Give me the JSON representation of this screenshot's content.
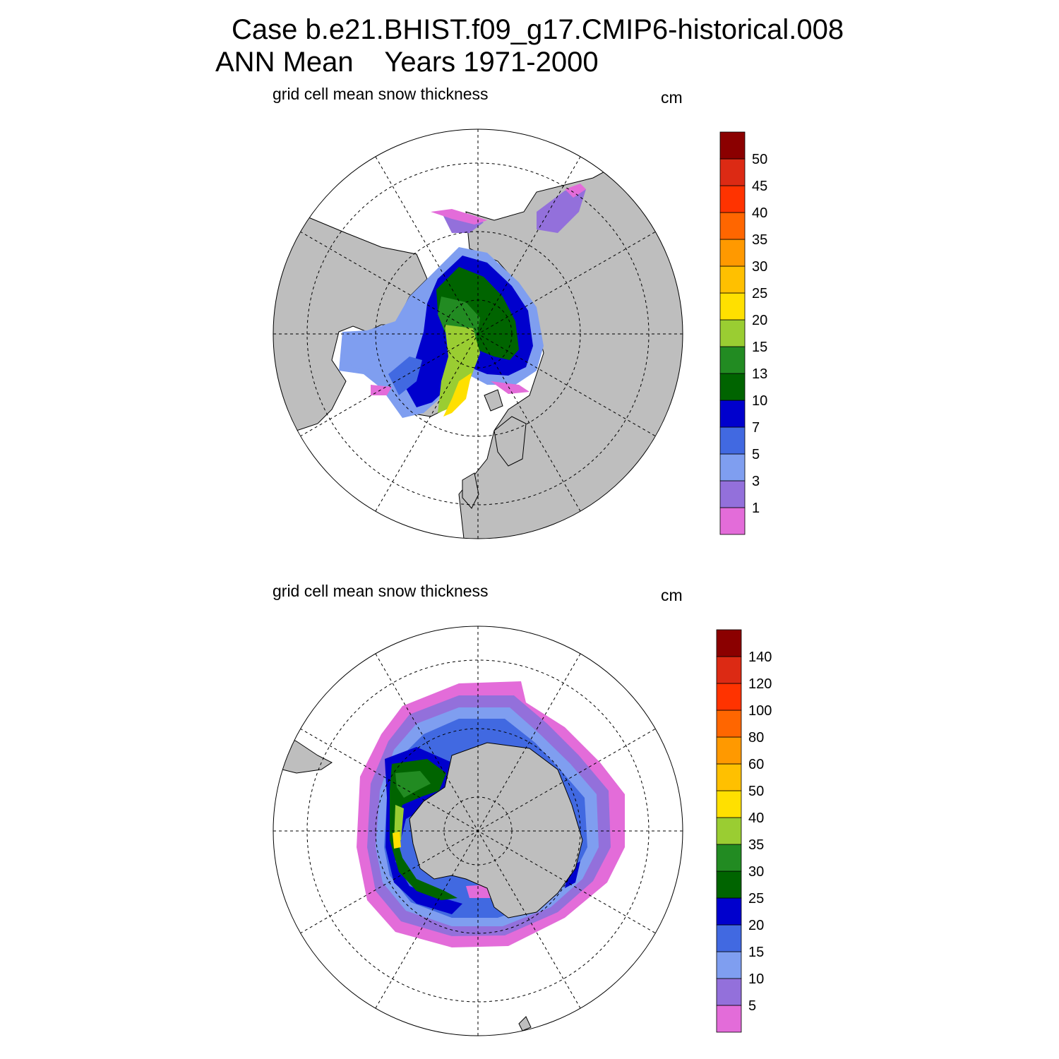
{
  "figure": {
    "title_line1": "Case b.e21.BHIST.f09_g17.CMIP6-historical.008",
    "title_line2": "ANN Mean    Years 1971-2000"
  },
  "panels": [
    {
      "hemisphere": "north",
      "variable_label": "grid cell mean snow thickness",
      "units": "cm",
      "colorbar_labels": [
        "50",
        "45",
        "40",
        "35",
        "30",
        "25",
        "20",
        "15",
        "13",
        "10",
        "7",
        "5",
        "3",
        "1"
      ]
    },
    {
      "hemisphere": "south",
      "variable_label": "grid cell mean snow thickness",
      "units": "cm",
      "colorbar_labels": [
        "140",
        "120",
        "100",
        "80",
        "60",
        "50",
        "40",
        "35",
        "30",
        "25",
        "20",
        "15",
        "10",
        "5"
      ]
    }
  ],
  "colors": {
    "land": "#bebebe",
    "ocean": "#ffffff",
    "colorbar": [
      "#e36cd9",
      "#9370db",
      "#7f9ef0",
      "#4169e1",
      "#0000cd",
      "#006400",
      "#228b22",
      "#9acd32",
      "#ffe000",
      "#ffc000",
      "#ff9900",
      "#ff6600",
      "#ff3300",
      "#dc2a14",
      "#8b0000"
    ]
  }
}
